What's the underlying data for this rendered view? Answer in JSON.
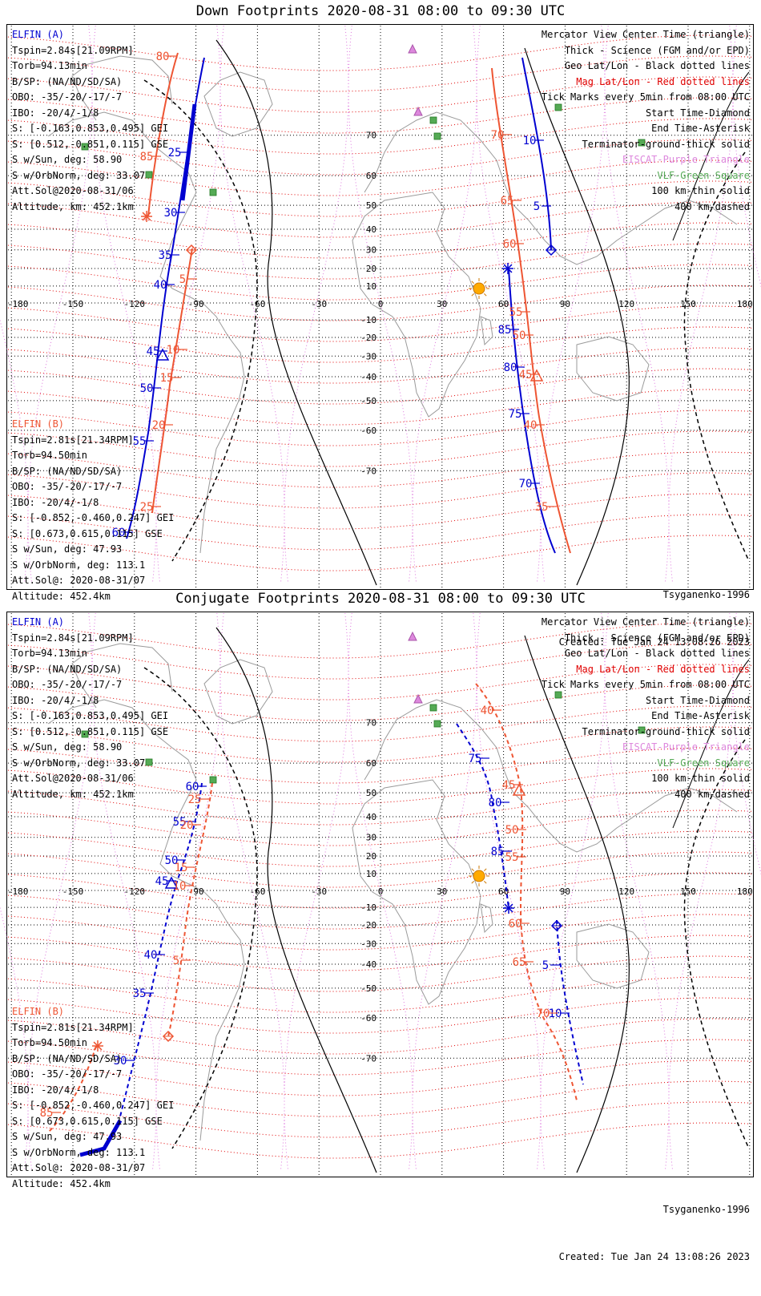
{
  "panels": [
    {
      "title": "Down Footprints 2020-08-31 08:00 to 09:30 UTC",
      "info_a": [
        "ELFIN (A)",
        "Tspin=2.84s[21.09RPM]",
        "Torb=94.13min",
        "B/SP: (NA/ND/SD/SA)",
        "OBO: -35/-20/-17/-7",
        "IBO: -20/4/-1/8",
        "S: [-0.163,0.853,0.495] GEI",
        "S: [0.512,-0.851,0.115] GSE",
        "S w/Sun, deg: 58.90",
        "S w/OrbNorm, deg: 33.07",
        "Att.Sol@2020-08-31/06",
        "Altitude, km: 452.1km"
      ],
      "info_b": [
        "ELFIN (B)",
        "Tspin=2.81s[21.34RPM]",
        "Torb=94.50min",
        "B/SP: (NA/ND/SD/SA)",
        "OBO: -35/-20/-17/-7",
        "IBO: -20/4/-1/8",
        "S: [-0.852,-0.460,0.247] GEI",
        "S: [0.673,0.615,0.115] GSE",
        "S w/Sun, deg: 47.93",
        "S w/OrbNorm, deg: 113.1",
        "Att.Sol@: 2020-08-31/07",
        "Altitude: 452.4km"
      ]
    },
    {
      "title": "Conjugate Footprints 2020-08-31 08:00 to 09:30 UTC",
      "info_a": [
        "ELFIN (A)",
        "Tspin=2.84s[21.09RPM]",
        "Torb=94.13min",
        "B/SP: (NA/ND/SD/SA)",
        "OBO: -35/-20/-17/-7",
        "IBO: -20/4/-1/8",
        "S: [-0.163,0.853,0.495] GEI",
        "S: [0.512,-0.851,0.115] GSE",
        "S w/Sun, deg: 58.90",
        "S w/OrbNorm, deg: 33.07",
        "Att.Sol@2020-08-31/06",
        "Altitude, km: 452.1km"
      ],
      "info_b": [
        "ELFIN (B)",
        "Tspin=2.81s[21.34RPM]",
        "Torb=94.50min",
        "B/SP: (NA/ND/SD/SA)",
        "OBO: -35/-20/-17/-7",
        "IBO: -20/4/-1/8",
        "S: [-0.852,-0.460,0.247] GEI",
        "S: [0.673,0.615,0.115] GSE",
        "S w/Sun, deg: 47.93",
        "S w/OrbNorm, deg: 113.1",
        "Att.Sol@: 2020-08-31/07",
        "Altitude: 452.4km"
      ]
    }
  ],
  "legend": [
    {
      "text": "Mercator View Center Time (triangle)",
      "color": "#000000"
    },
    {
      "text": "Thick - Science (FGM and/or EPD)",
      "color": "#000000"
    },
    {
      "text": "Geo Lat/Lon - Black dotted lines",
      "color": "#000000"
    },
    {
      "text": "Mag Lat/Lon - Red dotted lines",
      "color": "#e00000"
    },
    {
      "text": "Tick Marks every 5min from 08:00 UTC",
      "color": "#000000"
    },
    {
      "text": "Start Time-Diamond",
      "color": "#000000"
    },
    {
      "text": "End Time-Asterisk",
      "color": "#000000"
    },
    {
      "text": "Terminator-ground-thick solid",
      "color": "#000000"
    },
    {
      "text": "EISCAT-Purple Triangle",
      "color": "#dd88dd"
    },
    {
      "text": "VLF-Green Square",
      "color": "#55aa55"
    },
    {
      "text": "100 km-thin solid",
      "color": "#000000"
    },
    {
      "text": "400 km-dashed",
      "color": "#000000"
    }
  ],
  "model": "Tsyganenko-1996",
  "created": "Created: Tue Jan 24 13:08:26 2023",
  "lon_ticks": [
    "-180",
    "-150",
    "-120",
    "-90",
    "-60",
    "-30",
    "0",
    "30",
    "60",
    "90",
    "120",
    "150",
    "180"
  ],
  "lat_ticks": [
    "70",
    "60",
    "50",
    "40",
    "30",
    "20",
    "10",
    "-10",
    "-20",
    "-30",
    "-40",
    "-50",
    "-60",
    "-70"
  ],
  "colors": {
    "probe_a": "#0000d0",
    "probe_b": "#ee5533",
    "sun": "#ffaa00",
    "eiscat": "#dd88dd",
    "vlf": "#55aa55"
  },
  "tracks": {
    "down": {
      "a_west": {
        "start_tick": "25",
        "tick_labels": [
          "25",
          "30",
          "35",
          "40",
          "45",
          "50",
          "55",
          "60"
        ]
      },
      "b_west": {
        "tick_labels": [
          "80",
          "85",
          "5",
          "10",
          "15",
          "20",
          "25"
        ]
      },
      "a_east": {
        "tick_labels": [
          "10",
          "5",
          "85",
          "80",
          "75",
          "70"
        ]
      },
      "b_east": {
        "tick_labels": [
          "70",
          "65",
          "60",
          "55",
          "50",
          "45",
          "40",
          "35"
        ]
      }
    },
    "conj": {
      "a_west": {
        "tick_labels": [
          "60",
          "55",
          "50",
          "45",
          "40",
          "35",
          "30"
        ]
      },
      "b_west": {
        "tick_labels": [
          "25",
          "20",
          "15",
          "10",
          "5",
          "85"
        ]
      },
      "a_east": {
        "tick_labels": [
          "75",
          "80",
          "85",
          "5",
          "10"
        ]
      },
      "b_east": {
        "tick_labels": [
          "40",
          "45",
          "50",
          "55",
          "60",
          "65",
          "70"
        ]
      }
    }
  }
}
